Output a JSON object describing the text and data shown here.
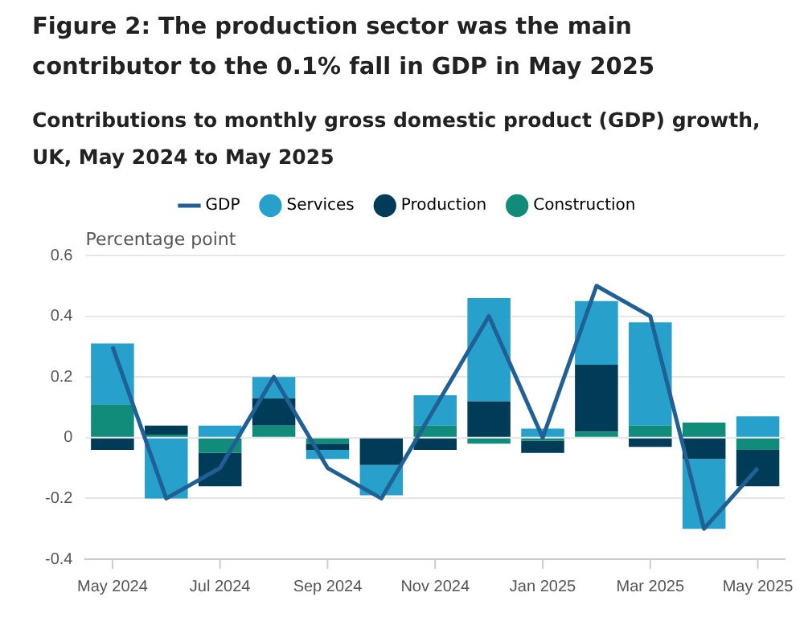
{
  "chart_data": {
    "type": "bar",
    "title": "Figure 2: The production sector was the main contributor to the 0.1% fall in GDP in May 2025",
    "subtitle": "Contributions to monthly gross domestic product (GDP) growth, UK, May 2024 to May 2025",
    "ylabel": "Percentage point",
    "categories": [
      "May 2024",
      null,
      "Jul 2024",
      null,
      "Sep 2024",
      null,
      "Nov 2024",
      null,
      "Jan 2025",
      null,
      "Mar 2025",
      null,
      "May 2025"
    ],
    "stacked": true,
    "grid": "y",
    "legend": "top",
    "ylim": [
      -0.4,
      0.6
    ],
    "yticks": [
      -0.4,
      -0.2,
      0,
      0.2,
      0.4,
      0.6
    ],
    "series": [
      {
        "name": "GDP",
        "type": "line",
        "color": "#206095",
        "marker": "none",
        "values": [
          0.3,
          -0.2,
          -0.1,
          0.2,
          -0.1,
          -0.2,
          0.1,
          0.4,
          0.0,
          0.5,
          0.4,
          -0.3,
          -0.1
        ]
      },
      {
        "name": "Construction",
        "color": "#118c7b",
        "values": [
          0.11,
          0.01,
          -0.05,
          0.04,
          -0.02,
          0,
          0.04,
          -0.02,
          -0.01,
          0.02,
          0.04,
          0.05,
          -0.04
        ]
      },
      {
        "name": "Production",
        "color": "#003c57",
        "values": [
          -0.04,
          0.03,
          -0.11,
          0.09,
          -0.02,
          -0.09,
          -0.04,
          0.12,
          -0.04,
          0.22,
          -0.03,
          -0.07,
          -0.12
        ]
      },
      {
        "name": "Services",
        "color": "#27a0cc",
        "values": [
          0.2,
          -0.2,
          0.04,
          0.07,
          -0.03,
          -0.1,
          0.1,
          0.34,
          0.03,
          0.21,
          0.34,
          -0.23,
          0.07
        ]
      }
    ]
  }
}
